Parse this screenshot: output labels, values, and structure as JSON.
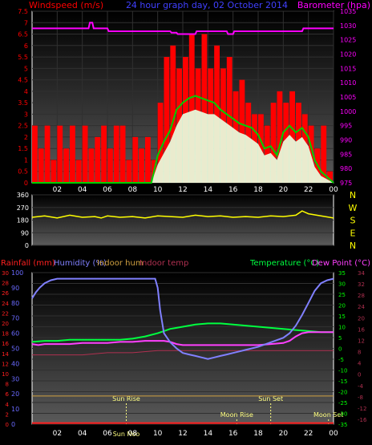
{
  "colors": {
    "background": "#000000",
    "wind_red": "#ff0000",
    "gust_green": "#00d000",
    "avg_white": "#e8ffe0",
    "baro_magenta": "#ff00ff",
    "dir_yellow": "#ffff00",
    "hum_blue": "#8080ff",
    "temp_green": "#00ff40",
    "dew_magenta": "#ff40ff",
    "indoor_temp": "#b03050",
    "indoor_hum": "#d0a040",
    "rain_red": "#ff2020",
    "axis_left_blue": "#6a6aff",
    "axis_right_green": "#00ff00",
    "astro_yellow": "#ffff80"
  },
  "chart_data": [
    {
      "type": "line",
      "id": "wind-baro",
      "title": "24 hour graph day, 02 October 2014",
      "left_label": "Windspeed (m/s)",
      "right_label": "Barometer (hpa)",
      "left_ticks": [
        "0",
        "0.5",
        "1",
        "1.5",
        "2",
        "2.5",
        "3",
        "3.5",
        "4",
        "4.5",
        "5",
        "5.5",
        "6",
        "6.5",
        "7",
        "7.5"
      ],
      "right_ticks": [
        "975",
        "980",
        "985",
        "990",
        "995",
        "1000",
        "1005",
        "1010",
        "1015",
        "1020",
        "1025",
        "1030",
        "1035"
      ],
      "x_ticks": [
        "02",
        "04",
        "06",
        "08",
        "10",
        "12",
        "14",
        "16",
        "18",
        "20",
        "22",
        "00"
      ],
      "xlim": [
        0,
        24
      ],
      "ylim": [
        0,
        7.5
      ],
      "y2lim": [
        975,
        1035
      ],
      "series": [
        {
          "key": "wind_max",
          "x": [
            0,
            0.5,
            1,
            1.5,
            2,
            2.5,
            3,
            3.5,
            4,
            4.5,
            5,
            5.5,
            6,
            6.5,
            7,
            7.5,
            8,
            8.5,
            9,
            9.5,
            10,
            10.5,
            11,
            11.5,
            12,
            12.5,
            13,
            13.5,
            14,
            14.5,
            15,
            15.5,
            16,
            16.5,
            17,
            17.5,
            18,
            18.5,
            19,
            19.5,
            20,
            20.5,
            21,
            21.5,
            22,
            22.5,
            23,
            23.5
          ],
          "y": [
            2.5,
            1.5,
            2.5,
            1.0,
            2.5,
            1.5,
            2.5,
            1.0,
            2.5,
            1.5,
            2.0,
            2.5,
            1.5,
            2.5,
            2.5,
            1.0,
            2.0,
            1.5,
            2.0,
            1.0,
            3.5,
            5.5,
            6.0,
            5.0,
            5.5,
            6.5,
            5.0,
            6.5,
            5.0,
            6.0,
            5.0,
            5.5,
            4.0,
            4.5,
            3.5,
            3.0,
            3.0,
            2.5,
            3.5,
            4.0,
            3.5,
            4.0,
            3.5,
            3.0,
            2.5,
            1.5,
            2.5,
            0.5
          ]
        },
        {
          "key": "wind_gust",
          "x": [
            0,
            1,
            2,
            3,
            4,
            5,
            6,
            7,
            8,
            9,
            9.5,
            10,
            10.5,
            11,
            11.5,
            12,
            12.5,
            13,
            13.5,
            14,
            14.5,
            15,
            15.5,
            16,
            16.5,
            17,
            17.5,
            18,
            18.5,
            19,
            19.5,
            20,
            20.5,
            21,
            21.5,
            22,
            22.5,
            23,
            24
          ],
          "y": [
            0,
            0,
            0,
            0,
            0,
            0,
            0,
            0,
            0,
            0,
            0,
            1.2,
            1.8,
            2.3,
            3.2,
            3.5,
            3.7,
            3.8,
            3.7,
            3.6,
            3.5,
            3.2,
            3.0,
            2.8,
            2.6,
            2.5,
            2.4,
            2.1,
            1.5,
            1.6,
            1.2,
            2.2,
            2.5,
            2.2,
            2.4,
            2.0,
            1.0,
            0.5,
            0
          ]
        },
        {
          "key": "wind_avg",
          "x": [
            0,
            1,
            2,
            3,
            4,
            5,
            6,
            7,
            8,
            9,
            9.5,
            10,
            10.5,
            11,
            11.5,
            12,
            12.5,
            13,
            13.5,
            14,
            14.5,
            15,
            15.5,
            16,
            16.5,
            17,
            17.5,
            18,
            18.5,
            19,
            19.5,
            20,
            20.5,
            21,
            21.5,
            22,
            22.5,
            23,
            24
          ],
          "y": [
            0,
            0,
            0,
            0,
            0,
            0,
            0,
            0,
            0,
            0,
            0,
            0.8,
            1.3,
            1.8,
            2.5,
            3.0,
            3.1,
            3.2,
            3.1,
            3.0,
            3.0,
            2.8,
            2.6,
            2.4,
            2.2,
            2.1,
            1.9,
            1.7,
            1.2,
            1.3,
            1.0,
            1.8,
            2.1,
            1.8,
            2.0,
            1.6,
            0.7,
            0.3,
            0
          ]
        },
        {
          "key": "barometer",
          "axis": "right",
          "x": [
            0,
            4.5,
            4.6,
            4.8,
            4.9,
            6,
            6.1,
            11,
            11.1,
            11.5,
            11.6,
            13,
            13.1,
            15.5,
            15.6,
            16,
            16.1,
            21.5,
            21.6,
            21.8,
            21.9,
            24
          ],
          "y": [
            1029,
            1029,
            1031,
            1031,
            1029,
            1029,
            1028,
            1028,
            1027.5,
            1027.5,
            1027,
            1027,
            1028,
            1028,
            1027,
            1027,
            1028,
            1028,
            1029,
            1029,
            1029,
            1029
          ]
        }
      ]
    },
    {
      "type": "line",
      "id": "direction",
      "left_ticks": [
        "0",
        "90",
        "180",
        "270",
        "360"
      ],
      "right_ticks": [
        "N",
        "W",
        "S",
        "E",
        "N"
      ],
      "ylim": [
        0,
        360
      ],
      "series": [
        {
          "key": "wind_dir",
          "x": [
            0,
            1,
            2,
            3,
            4,
            5,
            5.5,
            6,
            7,
            8,
            9,
            10,
            11,
            12,
            13,
            14,
            15,
            16,
            17,
            18,
            19,
            20,
            21,
            21.5,
            22,
            23,
            24
          ],
          "y": [
            200,
            210,
            195,
            215,
            200,
            205,
            195,
            210,
            200,
            205,
            195,
            210,
            205,
            200,
            215,
            205,
            210,
            200,
            205,
            200,
            210,
            205,
            215,
            245,
            225,
            210,
            195
          ]
        }
      ]
    },
    {
      "type": "line",
      "id": "temp-hum",
      "left_label_rain": "Rainfall (mm)",
      "left_label_hum": "Humidity (%)",
      "left_label_inhum": "Indoor hum",
      "left_label_intemp": "Indoor temp",
      "right_label_temp": "Temperature (°C)",
      "right_label_dew": "Dew Point (°C)",
      "rain_ticks": [
        "0",
        "2",
        "4",
        "6",
        "8",
        "10",
        "12",
        "14",
        "16",
        "18",
        "20",
        "22",
        "24",
        "26",
        "28",
        "30"
      ],
      "hum_ticks": [
        "0",
        "10",
        "20",
        "30",
        "40",
        "50",
        "60",
        "70",
        "80",
        "90",
        "100"
      ],
      "temp_ticks": [
        "-35",
        "-30",
        "-25",
        "-20",
        "-15",
        "-10",
        "-5",
        "0",
        "5",
        "10",
        "15",
        "20",
        "25",
        "30",
        "35"
      ],
      "indoor_ticks": [
        "-16",
        "-12",
        "-8",
        "-4",
        "0",
        "4",
        "8",
        "12",
        "16",
        "20",
        "24",
        "28",
        "32",
        "34"
      ],
      "x_ticks": [
        "02",
        "04",
        "06",
        "08",
        "10",
        "12",
        "14",
        "16",
        "18",
        "20",
        "22",
        "00"
      ],
      "xlim": [
        0,
        24
      ],
      "hum_lim": [
        0,
        100
      ],
      "temp_lim": [
        -35,
        35
      ],
      "astro_labels": {
        "sun_rise": "Sun Rise",
        "sun_set": "Sun Set",
        "moon_rise": "Moon Rise",
        "moon_set": "Moon Set",
        "sun_noon": "Sun Noo"
      },
      "astro_times": {
        "sun_rise": 7.5,
        "sun_set": 19.0,
        "moon_rise": 16.3,
        "moon_set": 23.6,
        "sun_noon": 7.5
      },
      "series": [
        {
          "key": "humidity",
          "axis": "hum",
          "x": [
            0,
            0.3,
            0.6,
            1,
            1.5,
            2,
            2.5,
            3,
            4,
            5,
            6,
            7,
            8,
            9,
            9.8,
            10,
            10.2,
            10.5,
            11,
            11.5,
            12,
            12.5,
            13,
            13.5,
            14,
            14.5,
            15,
            15.5,
            16,
            16.5,
            17,
            18,
            19,
            20,
            20.5,
            21,
            21.5,
            22,
            22.5,
            23,
            23.5,
            24
          ],
          "y": [
            83,
            87,
            90,
            93,
            95,
            96,
            96,
            96,
            96,
            96,
            96,
            96,
            96,
            96,
            96,
            90,
            75,
            60,
            54,
            50,
            47,
            46,
            45,
            44,
            43,
            44,
            45,
            46,
            47,
            48,
            49,
            51,
            54,
            57,
            60,
            65,
            72,
            80,
            88,
            93,
            95,
            96
          ]
        },
        {
          "key": "temperature",
          "axis": "temp",
          "x": [
            0,
            1,
            2,
            3,
            4,
            5,
            6,
            7,
            8,
            9,
            10,
            10.5,
            11,
            11.5,
            12,
            13,
            14,
            15,
            16,
            17,
            18,
            19,
            20,
            21,
            22,
            23,
            24
          ],
          "y": [
            3,
            3.5,
            3.5,
            4,
            4,
            4,
            4,
            4,
            4.5,
            5.5,
            7,
            8,
            9,
            9.5,
            10,
            11,
            11.5,
            11.5,
            11,
            10.5,
            10,
            9.5,
            9,
            8.5,
            8,
            7.5,
            7.5
          ]
        },
        {
          "key": "dew_point",
          "axis": "temp",
          "x": [
            0,
            0.5,
            1,
            2,
            3,
            4,
            5,
            6,
            7,
            8,
            9,
            10,
            10.5,
            11,
            11.5,
            12,
            13,
            14,
            15,
            16,
            17,
            18,
            19,
            20,
            20.5,
            21,
            21.5,
            22,
            22.5,
            23,
            24
          ],
          "y": [
            2,
            1.5,
            2,
            2,
            2,
            2.5,
            2.5,
            2.5,
            3,
            3,
            3.5,
            3.5,
            3.5,
            3,
            2,
            1.5,
            1.5,
            1.5,
            1.5,
            1.5,
            1.5,
            1.5,
            2,
            2.5,
            3.5,
            5.5,
            7,
            7.5,
            7.5,
            7.5,
            7.5
          ]
        },
        {
          "key": "indoor_temp",
          "axis": "temp",
          "x": [
            0,
            2,
            4,
            6,
            8,
            10,
            12,
            14,
            16,
            18,
            20,
            22,
            24
          ],
          "y": [
            -3,
            -3,
            -3,
            -2,
            -2,
            -1,
            -1,
            -1,
            -1,
            -1,
            -1,
            -1,
            -1
          ]
        },
        {
          "key": "indoor_hum",
          "axis": "temp",
          "x": [
            0,
            24
          ],
          "y": [
            -22,
            -22
          ]
        },
        {
          "key": "rainfall",
          "axis": "temp",
          "x": [
            0,
            24
          ],
          "y": [
            -34.5,
            -34.5
          ]
        }
      ]
    }
  ]
}
